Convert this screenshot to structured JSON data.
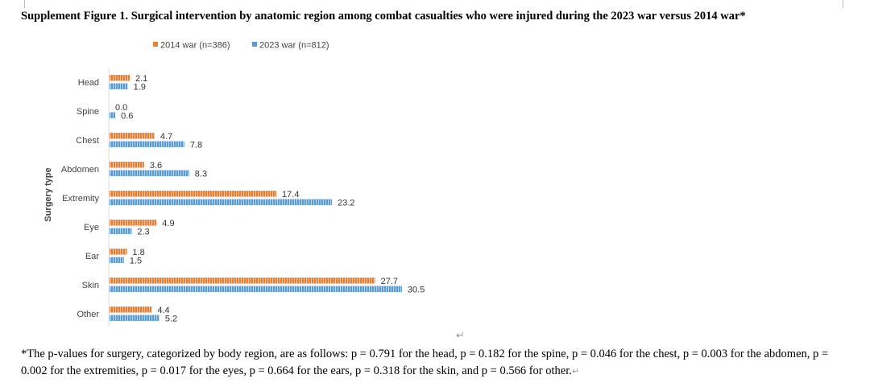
{
  "title": "Supplement Figure 1. Surgical intervention by anatomic region among combat casualties who were injured during the 2023 war versus 2014 war*",
  "footnote_line1": "*The p-values for surgery, categorized by body region, are as follows: p = 0.791 for the head, p = 0.182 for the spine, p = 0.046 for the chest, p = 0.003 for the abdomen, p =",
  "footnote_line2": "0.002 for the extremities, p = 0.017 for the eyes, p = 0.664 for the ears, p = 0.318 for the skin, and p = 0.566 for other.",
  "paragraph_mark": "↵",
  "chart_data": {
    "type": "bar",
    "orientation": "horizontal",
    "ylabel": "Surgery type",
    "xlabel": "",
    "categories": [
      "Head",
      "Spine",
      "Chest",
      "Abdomen",
      "Extremity",
      "Eye",
      "Ear",
      "Skin",
      "Other"
    ],
    "series": [
      {
        "name": "2014 war (n=386)",
        "color": "#ED7D31",
        "values": [
          2.1,
          0.0,
          4.7,
          3.6,
          17.4,
          4.9,
          1.8,
          27.7,
          4.4
        ]
      },
      {
        "name": "2023 war (n=812)",
        "color": "#5B9BD5",
        "values": [
          1.9,
          0.6,
          7.8,
          8.3,
          23.2,
          2.3,
          1.5,
          30.5,
          5.2
        ]
      }
    ],
    "legend_position": "top",
    "grid": false
  }
}
